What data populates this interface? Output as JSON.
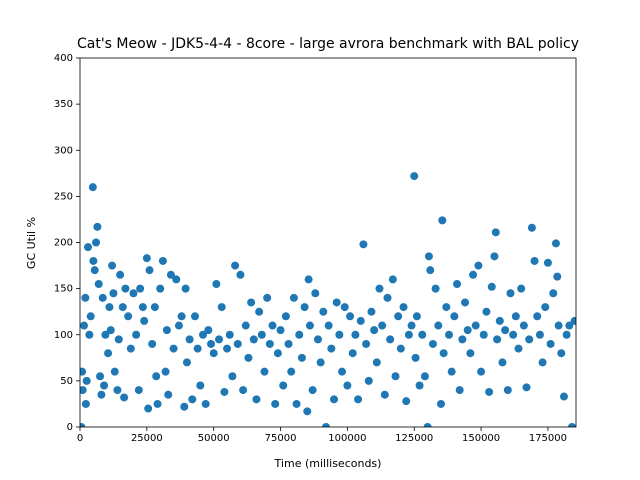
{
  "chart_data": {
    "type": "scatter",
    "title": "Cat's Meow - JDK5-4-4 - 8core -  large avrora benchmark with BAL policy",
    "xlabel": "Time (milliseconds)",
    "ylabel": "GC Util %",
    "color": "#1f77b4",
    "xlim": [
      0,
      185500
    ],
    "ylim": [
      0,
      400
    ],
    "xticks": [
      0,
      25000,
      50000,
      75000,
      100000,
      125000,
      150000,
      175000
    ],
    "yticks": [
      0,
      50,
      100,
      150,
      200,
      250,
      300,
      350,
      400
    ],
    "x": [
      500,
      800,
      1000,
      1500,
      2000,
      2200,
      2500,
      3000,
      3500,
      4000,
      4800,
      5000,
      5500,
      6000,
      6500,
      7000,
      7500,
      8000,
      8500,
      9000,
      9500,
      10500,
      11000,
      11500,
      12000,
      12500,
      13000,
      14000,
      14500,
      15000,
      16000,
      16500,
      17000,
      18000,
      19000,
      20000,
      21000,
      22000,
      22500,
      23500,
      24000,
      25000,
      25500,
      26000,
      27000,
      28000,
      28500,
      29000,
      30000,
      31000,
      32000,
      32500,
      33000,
      34000,
      35000,
      36000,
      37000,
      38000,
      39000,
      39500,
      40000,
      41000,
      42000,
      43000,
      44000,
      45000,
      46000,
      47000,
      48000,
      49000,
      50000,
      51000,
      52000,
      53000,
      54000,
      55000,
      56000,
      57000,
      58000,
      59000,
      60000,
      61000,
      62000,
      63000,
      64000,
      65000,
      66000,
      67000,
      68000,
      69000,
      70000,
      71000,
      72000,
      73000,
      74000,
      75000,
      76000,
      77000,
      78000,
      79000,
      80000,
      81000,
      82000,
      83000,
      84000,
      85000,
      85500,
      86000,
      87000,
      88000,
      89000,
      90000,
      91000,
      92000,
      93000,
      94000,
      95000,
      96000,
      97000,
      98000,
      99000,
      100000,
      101000,
      102000,
      103000,
      104000,
      105000,
      106000,
      107000,
      108000,
      109000,
      110000,
      111000,
      112000,
      113000,
      114000,
      115000,
      116000,
      117000,
      118000,
      119000,
      120000,
      121000,
      122000,
      123000,
      124000,
      125000,
      125500,
      126000,
      127000,
      128000,
      129000,
      130000,
      130500,
      131000,
      132000,
      133000,
      134000,
      135000,
      135500,
      136000,
      137000,
      138000,
      139000,
      140000,
      141000,
      142000,
      143000,
      144000,
      145000,
      146000,
      147000,
      148000,
      149000,
      150000,
      151000,
      152000,
      153000,
      154000,
      155000,
      155500,
      156000,
      157000,
      158000,
      159000,
      160000,
      161000,
      162000,
      163000,
      164000,
      165000,
      166000,
      167000,
      168000,
      169000,
      170000,
      171000,
      172000,
      173000,
      174000,
      175000,
      176000,
      177000,
      178000,
      178500,
      179000,
      180000,
      181000,
      182000,
      183000,
      184000,
      185000
    ],
    "y": [
      0,
      60,
      40,
      110,
      140,
      25,
      50,
      195,
      100,
      120,
      260,
      180,
      170,
      200,
      217,
      155,
      55,
      35,
      140,
      45,
      100,
      80,
      130,
      105,
      175,
      145,
      60,
      40,
      95,
      165,
      130,
      32,
      150,
      120,
      85,
      145,
      100,
      40,
      150,
      130,
      115,
      183,
      20,
      170,
      90,
      130,
      55,
      25,
      150,
      180,
      60,
      105,
      35,
      165,
      85,
      160,
      110,
      120,
      22,
      150,
      70,
      95,
      30,
      120,
      85,
      45,
      100,
      25,
      105,
      90,
      80,
      155,
      95,
      130,
      38,
      85,
      100,
      55,
      175,
      90,
      165,
      40,
      110,
      75,
      135,
      95,
      30,
      125,
      100,
      60,
      140,
      90,
      110,
      25,
      80,
      105,
      45,
      120,
      90,
      60,
      140,
      25,
      100,
      75,
      130,
      17,
      160,
      110,
      40,
      145,
      95,
      70,
      125,
      0,
      110,
      85,
      30,
      135,
      100,
      60,
      130,
      45,
      120,
      80,
      100,
      30,
      115,
      198,
      90,
      50,
      125,
      105,
      70,
      150,
      110,
      35,
      140,
      95,
      160,
      55,
      120,
      85,
      130,
      28,
      100,
      110,
      272,
      75,
      120,
      45,
      100,
      55,
      0,
      185,
      170,
      90,
      150,
      110,
      25,
      224,
      80,
      130,
      100,
      60,
      120,
      155,
      40,
      95,
      135,
      105,
      80,
      165,
      110,
      175,
      60,
      100,
      125,
      38,
      152,
      185,
      211,
      95,
      115,
      70,
      105,
      40,
      145,
      100,
      120,
      85,
      150,
      110,
      43,
      95,
      216,
      180,
      120,
      100,
      70,
      130,
      178,
      90,
      145,
      199,
      163,
      110,
      80,
      33,
      100,
      110,
      0,
      115
    ]
  }
}
